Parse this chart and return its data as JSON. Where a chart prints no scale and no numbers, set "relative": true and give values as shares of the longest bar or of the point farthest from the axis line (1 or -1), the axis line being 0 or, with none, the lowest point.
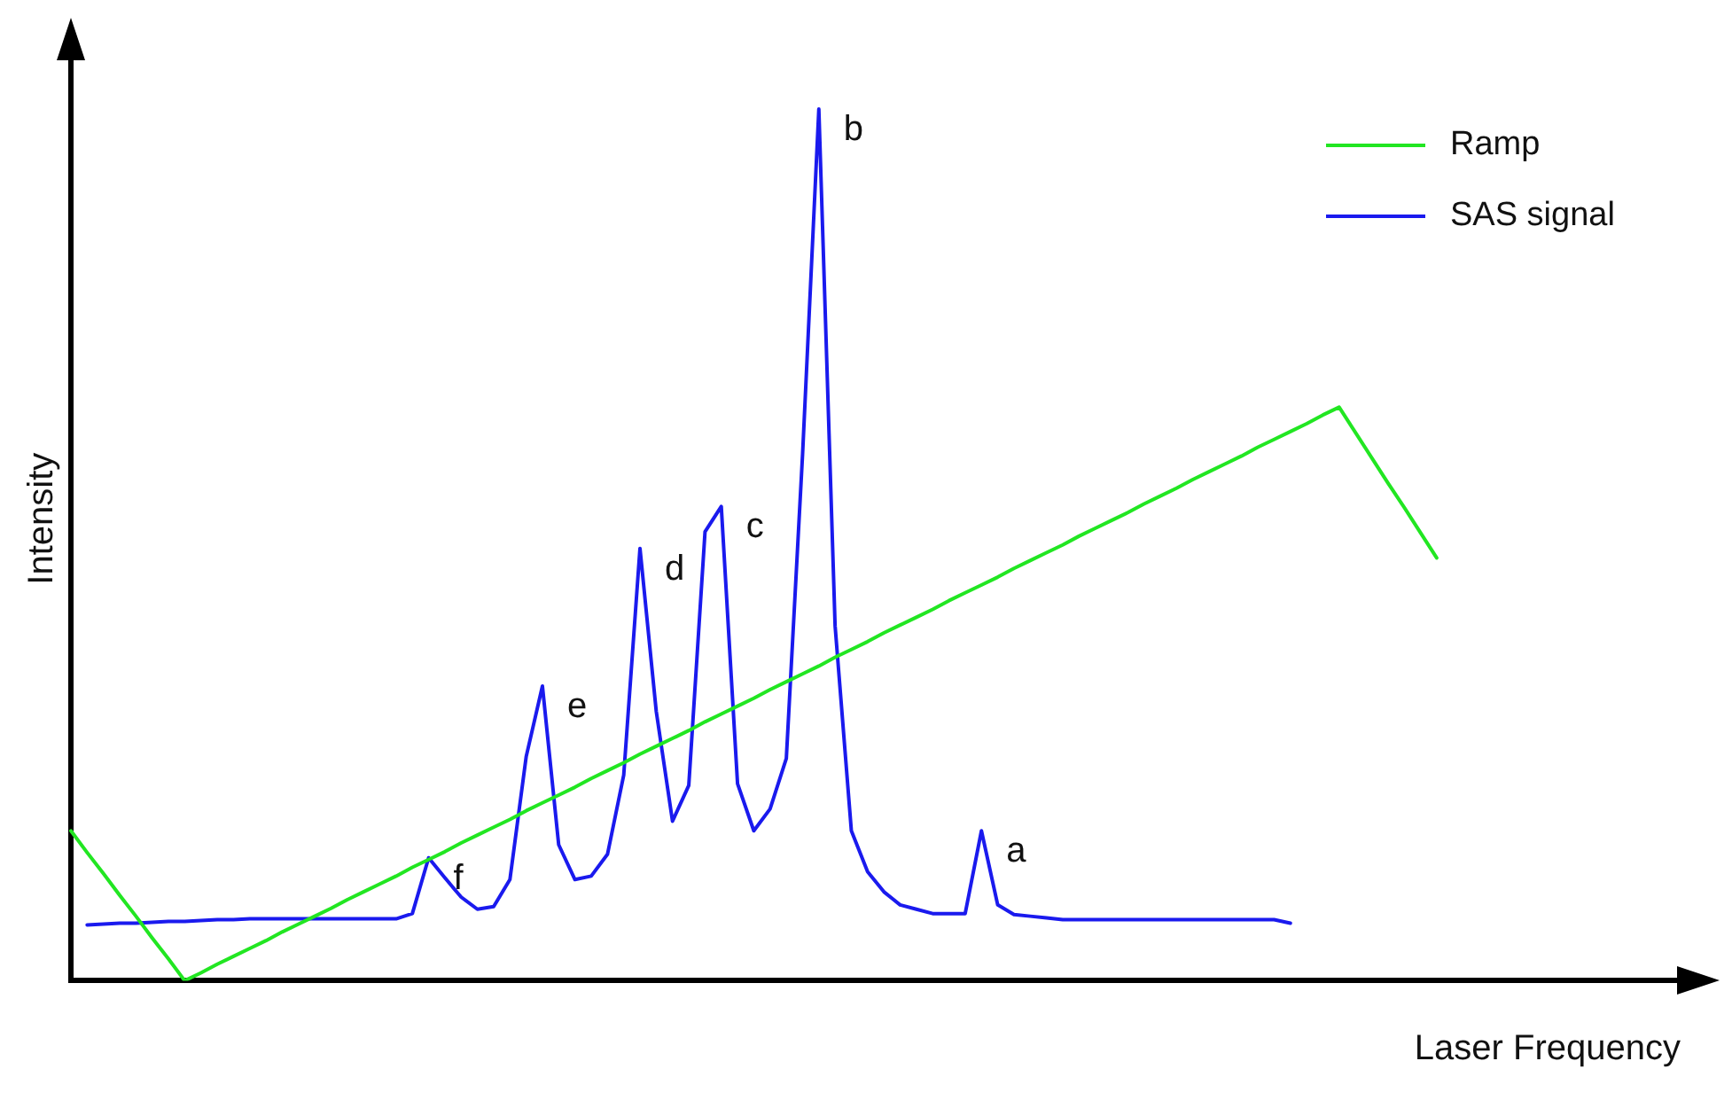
{
  "chart_data": {
    "type": "line",
    "relative": true,
    "xlabel": "Laser Frequency",
    "ylabel": "Intensity",
    "legend": "top right",
    "grid": false,
    "marker": "none",
    "line_style": "solid",
    "categories": [
      null,
      null,
      null,
      null,
      null,
      null,
      null,
      null,
      null,
      null,
      null,
      null,
      null,
      null,
      null,
      null,
      null,
      null,
      null,
      null,
      null,
      null,
      null,
      null,
      null,
      null,
      null,
      null,
      null,
      null,
      null,
      null,
      null,
      null,
      null,
      null,
      null,
      null,
      null,
      null,
      null,
      null,
      null,
      null,
      null,
      null,
      null,
      null,
      null,
      null,
      null,
      null,
      null,
      null,
      null,
      null,
      null,
      null,
      null,
      null,
      null,
      null,
      null,
      null,
      null,
      null,
      null,
      null,
      null,
      null,
      null,
      null,
      null,
      null,
      null,
      null,
      null,
      null,
      null,
      null,
      null,
      null,
      null,
      null,
      null,
      null,
      null,
      null,
      null,
      null,
      null,
      null,
      null,
      null,
      null,
      null,
      null,
      null,
      null,
      null
    ],
    "series": [
      {
        "name": "Ramp",
        "color": "#22e622",
        "values": [
          0.172,
          0.147,
          0.123,
          0.098,
          0.074,
          0.049,
          0.025,
          0,
          0.009,
          0.019,
          0.028,
          0.037,
          0.046,
          0.056,
          0.065,
          0.074,
          0.083,
          0.093,
          0.102,
          0.111,
          0.12,
          0.13,
          0.139,
          0.148,
          0.158,
          0.167,
          0.176,
          0.185,
          0.195,
          0.204,
          0.213,
          0.222,
          0.232,
          0.241,
          0.25,
          0.26,
          0.269,
          0.278,
          0.287,
          0.297,
          0.306,
          0.315,
          0.324,
          0.334,
          0.343,
          0.352,
          0.361,
          0.371,
          0.38,
          0.389,
          0.399,
          0.408,
          0.417,
          0.426,
          0.436,
          0.445,
          0.454,
          0.463,
          0.473,
          0.482,
          0.491,
          0.5,
          0.51,
          0.519,
          0.528,
          0.537,
          0.547,
          0.556,
          0.565,
          0.575,
          0.584,
          0.593,
          0.602,
          0.612,
          0.621,
          0.63,
          0.639,
          0.649,
          0.658,
          0.629,
          0.6,
          0.571,
          0.543,
          0.514,
          0.485,
          null,
          null,
          null,
          null,
          null,
          null,
          null,
          null,
          null,
          null,
          null,
          null,
          null,
          null,
          null
        ]
      },
      {
        "name": "SAS signal",
        "color": "#1a1aee",
        "values": [
          null,
          0.064,
          0.065,
          0.066,
          0.066,
          0.067,
          0.068,
          0.068,
          0.069,
          0.07,
          0.07,
          0.071,
          0.071,
          0.071,
          0.071,
          0.071,
          0.071,
          0.071,
          0.071,
          0.071,
          0.071,
          0.077,
          0.141,
          0.118,
          0.096,
          0.082,
          0.085,
          0.116,
          0.257,
          0.338,
          0.156,
          0.116,
          0.12,
          0.145,
          0.236,
          0.496,
          0.309,
          0.183,
          0.224,
          0.515,
          0.544,
          0.226,
          0.172,
          0.197,
          0.255,
          0.604,
          1,
          0.407,
          0.172,
          0.125,
          0.102,
          0.087,
          0.082,
          0.077,
          0.077,
          0.077,
          0.172,
          0.087,
          0.076,
          0.074,
          0.072,
          0.07,
          0.07,
          0.07,
          0.07,
          0.07,
          0.07,
          0.07,
          0.07,
          0.07,
          0.07,
          0.07,
          0.07,
          0.07,
          0.07,
          0.066,
          null,
          null,
          null,
          null,
          null,
          null,
          null,
          null,
          null,
          null,
          null,
          null,
          null,
          null,
          null,
          null,
          null,
          null,
          null,
          null,
          null,
          null,
          null,
          null
        ]
      }
    ],
    "annotations": [
      "a",
      "b",
      "c",
      "d",
      "e",
      "f"
    ]
  }
}
